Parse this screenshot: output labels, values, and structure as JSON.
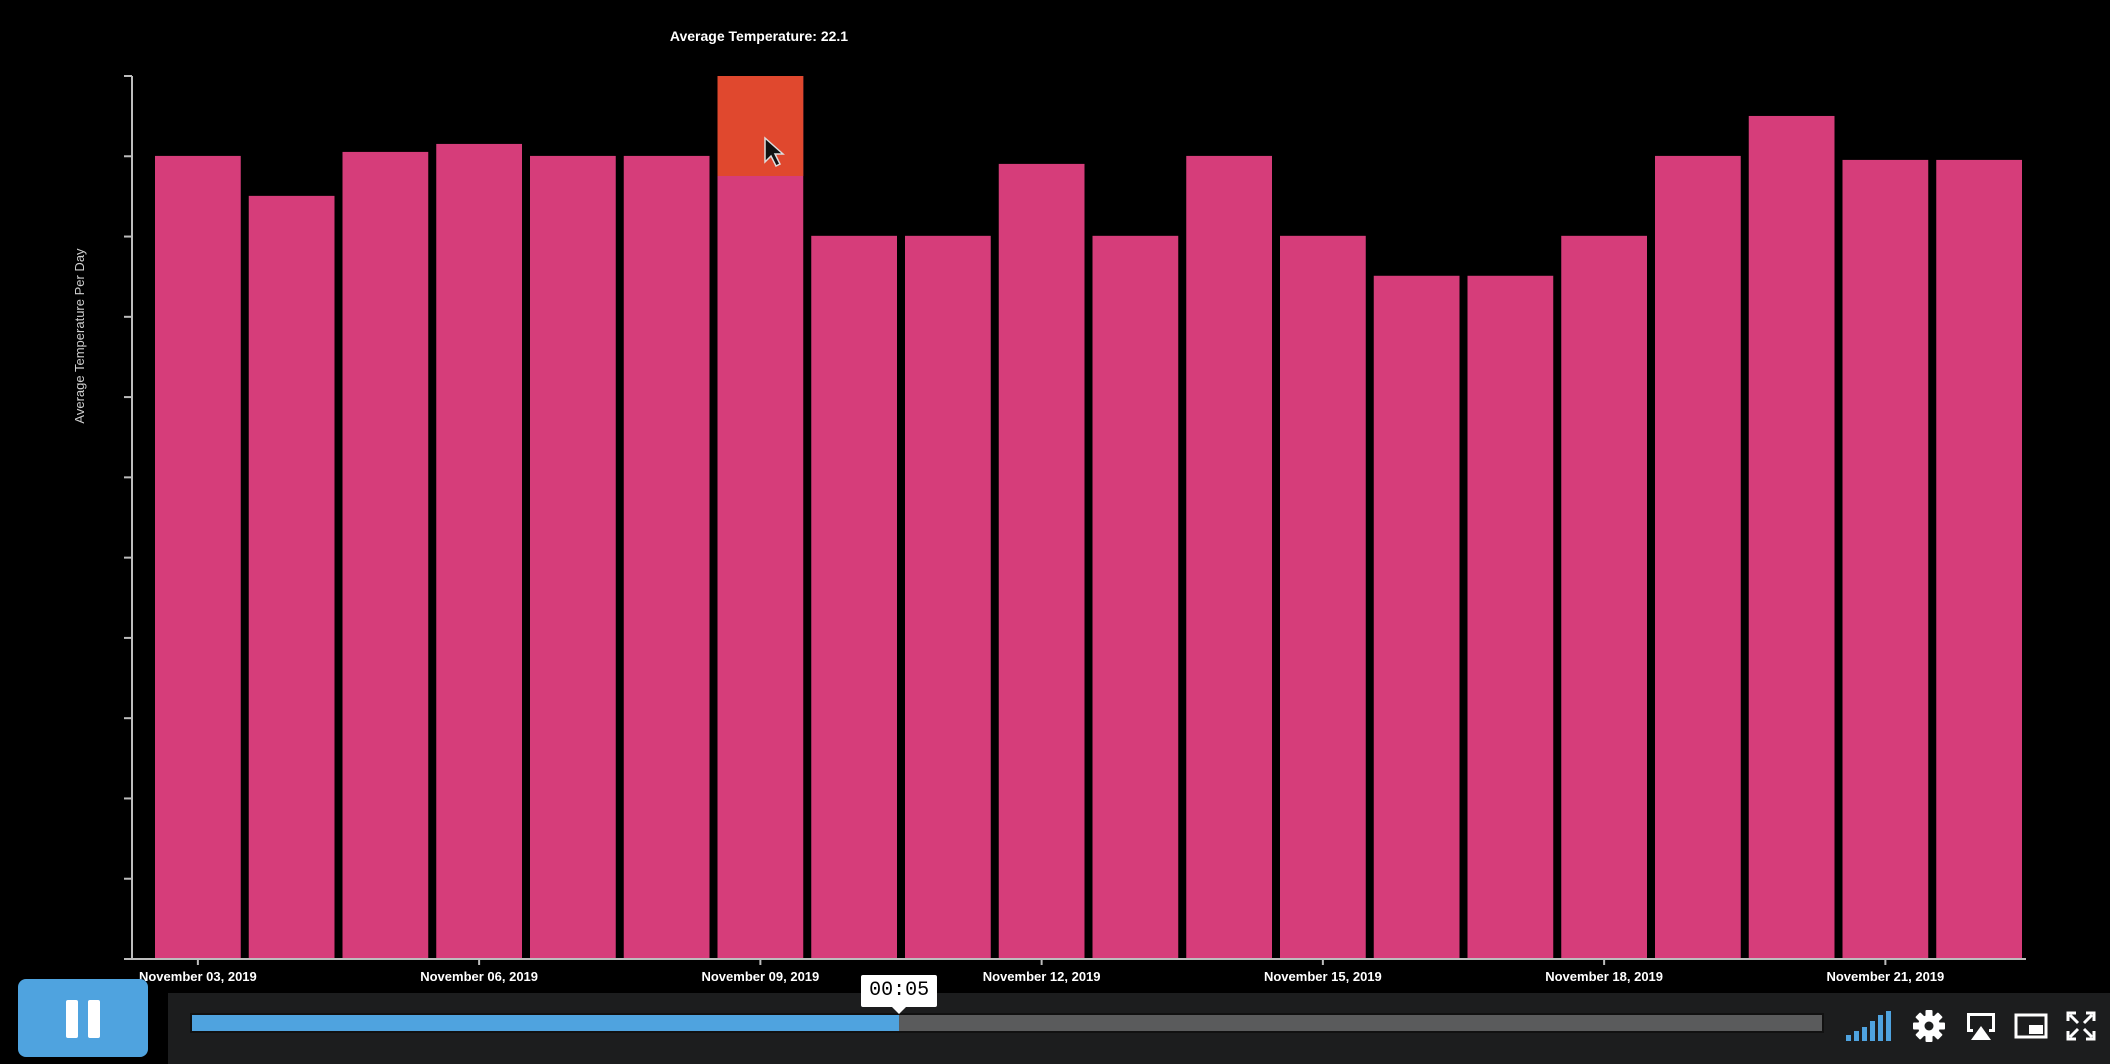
{
  "player": {
    "current_time": "00:05",
    "progress": 0.434,
    "accent_color": "#4fa3df",
    "pause_icon": "pause-icon",
    "control_icons": [
      "volume-bars-icon",
      "gear-icon",
      "airplay-icon",
      "picture-in-picture-icon",
      "fullscreen-icon"
    ]
  },
  "tooltip": {
    "text": "Average Temperature: 22.1"
  },
  "chart_data": {
    "type": "bar",
    "title": "",
    "xlabel": "",
    "ylabel": "Average Temperature Per Day",
    "bar_color": "#d63d7a",
    "hover_color": "#e0482e",
    "highlight_index": 6,
    "hover_value": 22.1,
    "ylim": [
      0,
      22.1
    ],
    "y_tick_count": 12,
    "x_tick_labels": [
      "November 03, 2019",
      "November 06, 2019",
      "November 09, 2019",
      "November 12, 2019",
      "November 15, 2019",
      "November 18, 2019",
      "November 21, 2019"
    ],
    "x_tick_positions": [
      1,
      4,
      7,
      10,
      13,
      16,
      19
    ],
    "values": [
      20.1,
      19.1,
      20.2,
      20.4,
      20.1,
      20.1,
      22.1,
      18.1,
      18.1,
      19.9,
      18.1,
      20.1,
      18.1,
      17.1,
      17.1,
      18.1,
      20.1,
      21.1,
      20.0,
      20.0
    ]
  }
}
